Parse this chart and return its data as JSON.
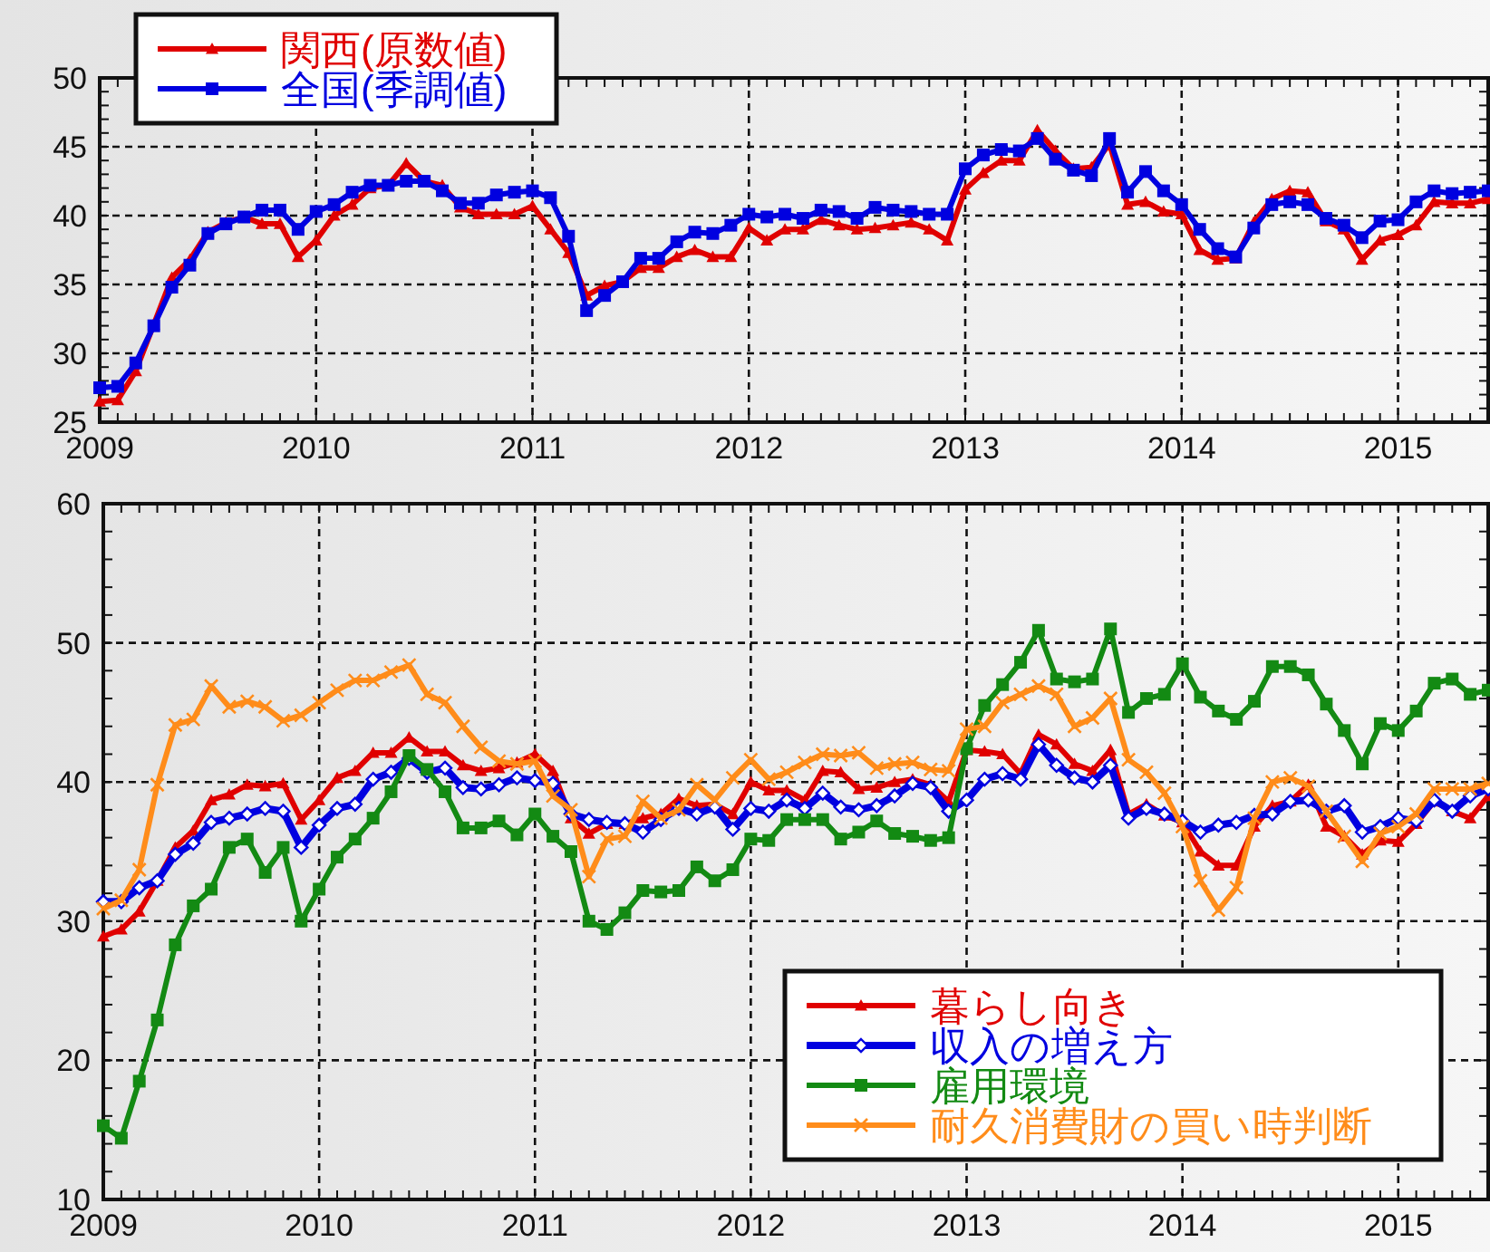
{
  "chart_data": [
    {
      "type": "line",
      "grid": true,
      "legend": "top left",
      "xlim": [
        "2009-01",
        "2015-06"
      ],
      "ylim": [
        25,
        50
      ],
      "yticks": [
        25,
        30,
        35,
        40,
        45,
        50
      ],
      "xticks": [
        {
          "value": "2009-01",
          "label": "2009"
        },
        {
          "value": "2010-01",
          "label": "2010"
        },
        {
          "value": "2011-01",
          "label": "2011"
        },
        {
          "value": "2012-01",
          "label": "2012"
        },
        {
          "value": "2013-01",
          "label": "2013"
        },
        {
          "value": "2014-01",
          "label": "2014"
        },
        {
          "value": "2015-01",
          "label": "2015"
        }
      ],
      "x": [
        "2009-01",
        "2009-02",
        "2009-03",
        "2009-04",
        "2009-05",
        "2009-06",
        "2009-07",
        "2009-08",
        "2009-09",
        "2009-10",
        "2009-11",
        "2009-12",
        "2010-01",
        "2010-02",
        "2010-03",
        "2010-04",
        "2010-05",
        "2010-06",
        "2010-07",
        "2010-08",
        "2010-09",
        "2010-10",
        "2010-11",
        "2010-12",
        "2011-01",
        "2011-02",
        "2011-03",
        "2011-04",
        "2011-05",
        "2011-06",
        "2011-07",
        "2011-08",
        "2011-09",
        "2011-10",
        "2011-11",
        "2011-12",
        "2012-01",
        "2012-02",
        "2012-03",
        "2012-04",
        "2012-05",
        "2012-06",
        "2012-07",
        "2012-08",
        "2012-09",
        "2012-10",
        "2012-11",
        "2012-12",
        "2013-01",
        "2013-02",
        "2013-03",
        "2013-04",
        "2013-05",
        "2013-06",
        "2013-07",
        "2013-08",
        "2013-09",
        "2013-10",
        "2013-11",
        "2013-12",
        "2014-01",
        "2014-02",
        "2014-03",
        "2014-04",
        "2014-05",
        "2014-06",
        "2014-07",
        "2014-08",
        "2014-09",
        "2014-10",
        "2014-11",
        "2014-12",
        "2015-01",
        "2015-02",
        "2015-03",
        "2015-04",
        "2015-05",
        "2015-06"
      ],
      "series": [
        {
          "name": "関西(原数値)",
          "color": "#e00000",
          "marker": "triangle",
          "values": [
            26.5,
            26.6,
            28.7,
            32.1,
            35.5,
            36.8,
            38.8,
            39.5,
            39.9,
            39.4,
            39.4,
            37.0,
            38.2,
            40.0,
            40.8,
            42.0,
            42.2,
            43.8,
            42.5,
            42.2,
            40.6,
            40.1,
            40.1,
            40.1,
            40.7,
            39.0,
            37.3,
            34.2,
            34.9,
            35.2,
            36.2,
            36.2,
            37.0,
            37.5,
            37.0,
            37.0,
            39.1,
            38.2,
            39.0,
            39.0,
            39.7,
            39.3,
            39.0,
            39.1,
            39.3,
            39.5,
            39.0,
            38.2,
            41.9,
            43.1,
            44.0,
            44.0,
            46.2,
            44.7,
            43.4,
            43.5,
            45.2,
            40.8,
            41.0,
            40.3,
            40.1,
            37.5,
            36.8,
            36.9,
            39.5,
            41.2,
            41.8,
            41.7,
            39.6,
            39.0,
            36.8,
            38.2,
            38.6,
            39.3,
            41.0,
            40.9,
            40.9,
            41.2
          ]
        },
        {
          "name": "全国(季調値)",
          "color": "#0000e0",
          "marker": "square",
          "values": [
            27.5,
            27.6,
            29.3,
            32.0,
            34.8,
            36.4,
            38.7,
            39.4,
            39.9,
            40.4,
            40.4,
            39.0,
            40.3,
            40.8,
            41.7,
            42.2,
            42.2,
            42.5,
            42.5,
            41.8,
            40.9,
            40.9,
            41.5,
            41.7,
            41.8,
            41.3,
            38.5,
            33.1,
            34.2,
            35.2,
            36.9,
            36.9,
            38.1,
            38.8,
            38.7,
            39.3,
            40.1,
            39.9,
            40.1,
            39.8,
            40.4,
            40.3,
            39.8,
            40.6,
            40.4,
            40.3,
            40.1,
            40.1,
            43.4,
            44.4,
            44.8,
            44.7,
            45.6,
            44.1,
            43.3,
            42.9,
            45.6,
            41.7,
            43.2,
            41.8,
            40.8,
            39.0,
            37.6,
            37.0,
            39.1,
            40.8,
            41.0,
            40.8,
            39.8,
            39.3,
            38.4,
            39.6,
            39.7,
            41.0,
            41.8,
            41.6,
            41.7,
            41.8
          ]
        }
      ]
    },
    {
      "type": "line",
      "grid": true,
      "legend": "bottom right",
      "xlim": [
        "2009-01",
        "2015-06"
      ],
      "ylim": [
        10,
        60
      ],
      "yticks": [
        10,
        20,
        30,
        40,
        50,
        60
      ],
      "xticks": [
        {
          "value": "2009-01",
          "label": "2009"
        },
        {
          "value": "2010-01",
          "label": "2010"
        },
        {
          "value": "2011-01",
          "label": "2011"
        },
        {
          "value": "2012-01",
          "label": "2012"
        },
        {
          "value": "2013-01",
          "label": "2013"
        },
        {
          "value": "2014-01",
          "label": "2014"
        },
        {
          "value": "2015-01",
          "label": "2015"
        }
      ],
      "x": [
        "2009-01",
        "2009-02",
        "2009-03",
        "2009-04",
        "2009-05",
        "2009-06",
        "2009-07",
        "2009-08",
        "2009-09",
        "2009-10",
        "2009-11",
        "2009-12",
        "2010-01",
        "2010-02",
        "2010-03",
        "2010-04",
        "2010-05",
        "2010-06",
        "2010-07",
        "2010-08",
        "2010-09",
        "2010-10",
        "2010-11",
        "2010-12",
        "2011-01",
        "2011-02",
        "2011-03",
        "2011-04",
        "2011-05",
        "2011-06",
        "2011-07",
        "2011-08",
        "2011-09",
        "2011-10",
        "2011-11",
        "2011-12",
        "2012-01",
        "2012-02",
        "2012-03",
        "2012-04",
        "2012-05",
        "2012-06",
        "2012-07",
        "2012-08",
        "2012-09",
        "2012-10",
        "2012-11",
        "2012-12",
        "2013-01",
        "2013-02",
        "2013-03",
        "2013-04",
        "2013-05",
        "2013-06",
        "2013-07",
        "2013-08",
        "2013-09",
        "2013-10",
        "2013-11",
        "2013-12",
        "2014-01",
        "2014-02",
        "2014-03",
        "2014-04",
        "2014-05",
        "2014-06",
        "2014-07",
        "2014-08",
        "2014-09",
        "2014-10",
        "2014-11",
        "2014-12",
        "2015-01",
        "2015-02",
        "2015-03",
        "2015-04",
        "2015-05",
        "2015-06"
      ],
      "series": [
        {
          "name": "暮らし向き",
          "color": "#e00000",
          "marker": "triangle",
          "values": [
            28.9,
            29.4,
            30.7,
            32.9,
            35.3,
            36.5,
            38.7,
            39.1,
            39.8,
            39.7,
            39.9,
            37.3,
            38.7,
            40.3,
            40.8,
            42.1,
            42.1,
            43.2,
            42.2,
            42.2,
            41.2,
            40.8,
            41.0,
            41.4,
            42.0,
            40.8,
            37.4,
            36.3,
            37.0,
            37.0,
            37.4,
            37.7,
            38.8,
            38.3,
            38.4,
            37.7,
            40.0,
            39.4,
            39.4,
            38.7,
            40.8,
            40.7,
            39.5,
            39.6,
            40.0,
            40.2,
            39.8,
            38.6,
            42.3,
            42.2,
            42.0,
            40.6,
            43.4,
            42.7,
            41.3,
            40.8,
            42.3,
            37.7,
            38.4,
            37.6,
            37.1,
            35.0,
            34.0,
            34.0,
            36.8,
            38.3,
            38.6,
            39.8,
            36.8,
            36.1,
            34.8,
            35.8,
            35.7,
            37.0,
            38.6,
            37.9,
            37.4,
            39.0
          ]
        },
        {
          "name": "収入の増え方",
          "color": "#0000e0",
          "marker": "diamond",
          "values": [
            31.4,
            31.4,
            32.4,
            32.9,
            34.8,
            35.6,
            37.1,
            37.4,
            37.7,
            38.1,
            37.9,
            35.3,
            36.9,
            38.1,
            38.4,
            40.2,
            40.7,
            41.7,
            40.7,
            41.0,
            39.6,
            39.5,
            39.8,
            40.3,
            40.1,
            39.9,
            37.7,
            37.3,
            37.1,
            37.0,
            36.4,
            37.3,
            38.1,
            37.7,
            38.2,
            36.6,
            38.1,
            37.9,
            38.7,
            38.1,
            39.2,
            38.2,
            38.0,
            38.3,
            39.0,
            39.9,
            39.6,
            37.9,
            38.7,
            40.2,
            40.6,
            40.2,
            42.7,
            41.2,
            40.3,
            40.0,
            41.2,
            37.4,
            38.1,
            37.7,
            37.2,
            36.4,
            36.9,
            37.1,
            37.6,
            37.7,
            38.6,
            38.7,
            37.9,
            38.3,
            36.4,
            36.8,
            37.4,
            37.2,
            38.7,
            37.9,
            39.0,
            39.5
          ]
        },
        {
          "name": "雇用環境",
          "color": "#138a13",
          "marker": "square",
          "values": [
            15.3,
            14.4,
            18.5,
            22.9,
            28.3,
            31.1,
            32.3,
            35.3,
            35.9,
            33.5,
            35.3,
            30.0,
            32.3,
            34.6,
            35.9,
            37.4,
            39.3,
            41.9,
            40.9,
            39.3,
            36.7,
            36.7,
            37.2,
            36.2,
            37.7,
            36.1,
            35.0,
            30.0,
            29.4,
            30.6,
            32.2,
            32.1,
            32.2,
            33.9,
            32.9,
            33.7,
            35.9,
            35.8,
            37.3,
            37.3,
            37.3,
            35.9,
            36.4,
            37.2,
            36.3,
            36.1,
            35.8,
            36.0,
            42.4,
            45.5,
            47.0,
            48.6,
            50.9,
            47.4,
            47.2,
            47.4,
            51.0,
            45.0,
            46.0,
            46.3,
            48.5,
            46.1,
            45.1,
            44.5,
            45.8,
            48.3,
            48.3,
            47.7,
            45.6,
            43.7,
            41.3,
            44.2,
            43.7,
            45.1,
            47.1,
            47.4,
            46.3,
            46.6
          ]
        },
        {
          "name": "耐久消費財の買い時判断",
          "color": "#ff8c1a",
          "marker": "cross",
          "values": [
            30.9,
            31.5,
            33.7,
            39.8,
            44.1,
            44.5,
            46.9,
            45.4,
            45.8,
            45.4,
            44.4,
            44.8,
            45.7,
            46.6,
            47.3,
            47.3,
            47.9,
            48.4,
            46.3,
            45.7,
            44.0,
            42.5,
            41.5,
            41.3,
            41.5,
            39.0,
            38.0,
            33.2,
            35.9,
            36.1,
            38.6,
            37.4,
            38.0,
            39.8,
            38.7,
            40.3,
            41.6,
            40.2,
            40.7,
            41.4,
            42.0,
            41.9,
            42.1,
            41.0,
            41.3,
            41.4,
            40.9,
            40.8,
            43.8,
            44.0,
            45.7,
            46.3,
            46.9,
            46.3,
            44.0,
            44.6,
            46.0,
            41.6,
            40.7,
            39.2,
            36.8,
            32.9,
            30.8,
            32.4,
            37.4,
            40.0,
            40.3,
            39.7,
            37.9,
            36.1,
            34.3,
            36.3,
            36.8,
            37.7,
            39.5,
            39.5,
            39.5,
            39.9
          ]
        }
      ]
    }
  ]
}
